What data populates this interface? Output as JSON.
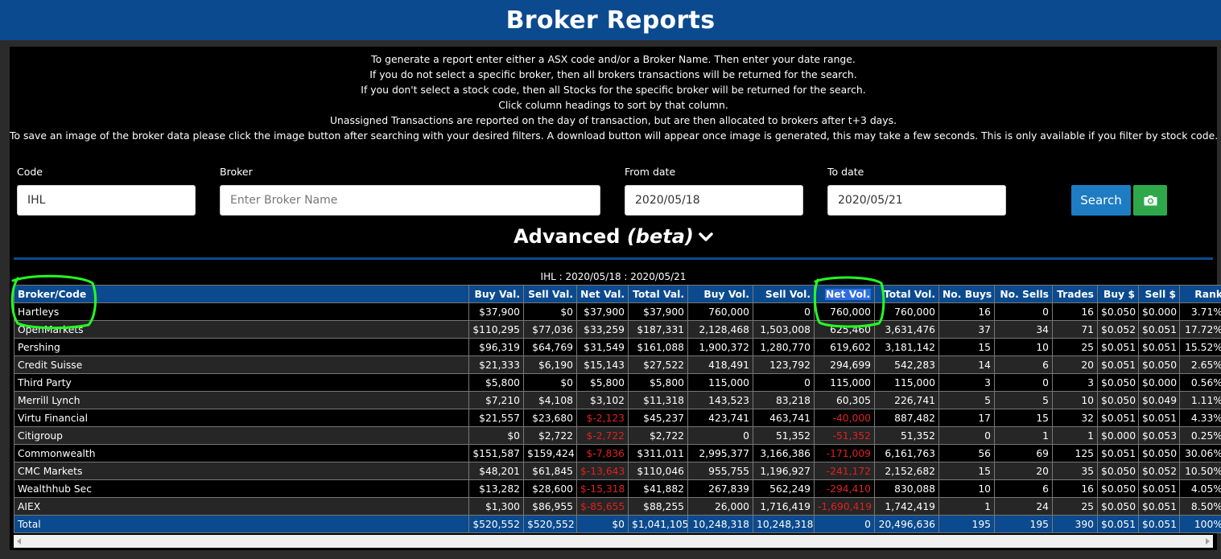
{
  "page": {
    "title": "Broker Reports"
  },
  "instructions": [
    "To generate a report enter either a ASX code and/or a Broker Name. Then enter your date range.",
    "If you do not select a specific broker, then all brokers transactions will be returned for the search.",
    "If you don't select a stock code, then all Stocks for the specific broker will be returned for the search.",
    "Click column headings to sort by that column.",
    "Unassigned Transactions are reported on the day of transaction, but are then allocated to brokers after t+3 days.",
    "To save an image of the broker data please click the image button after searching with your desired filters. A download button will appear once image is generated, this may take a few seconds. This is only available if you filter by stock code."
  ],
  "form": {
    "code_label": "Code",
    "code_value": "IHL",
    "broker_label": "Broker",
    "broker_placeholder": "Enter Broker Name",
    "from_label": "From date",
    "from_value": "2020/05/18",
    "to_label": "To date",
    "to_value": "2020/05/21",
    "search_label": "Search",
    "camera_icon": "camera-icon"
  },
  "advanced": {
    "label": "Advanced",
    "beta": "(beta)",
    "icon": "chevron-down-icon"
  },
  "report": {
    "caption": "IHL : 2020/05/18 : 2020/05/21",
    "columns": [
      "Broker/Code",
      "Buy Val.",
      "Sell Val.",
      "Net Val.",
      "Total Val.",
      "Buy Vol.",
      "Sell Vol.",
      "Net Vol.",
      "Total Vol.",
      "No. Buys",
      "No. Sells",
      "Trades",
      "Buy $",
      "Sell $",
      "Rank"
    ],
    "rows": [
      [
        "Hartleys",
        "$37,900",
        "$0",
        "$37,900",
        "$37,900",
        "760,000",
        "0",
        "760,000",
        "760,000",
        "16",
        "0",
        "16",
        "$0.050",
        "$0.000",
        "3.71%"
      ],
      [
        "OpenMarkets",
        "$110,295",
        "$77,036",
        "$33,259",
        "$187,331",
        "2,128,468",
        "1,503,008",
        "625,460",
        "3,631,476",
        "37",
        "34",
        "71",
        "$0.052",
        "$0.051",
        "17.72%"
      ],
      [
        "Pershing",
        "$96,319",
        "$64,769",
        "$31,549",
        "$161,088",
        "1,900,372",
        "1,280,770",
        "619,602",
        "3,181,142",
        "15",
        "10",
        "25",
        "$0.051",
        "$0.051",
        "15.52%"
      ],
      [
        "Credit Suisse",
        "$21,333",
        "$6,190",
        "$15,143",
        "$27,522",
        "418,491",
        "123,792",
        "294,699",
        "542,283",
        "14",
        "6",
        "20",
        "$0.051",
        "$0.050",
        "2.65%"
      ],
      [
        "Third Party",
        "$5,800",
        "$0",
        "$5,800",
        "$5,800",
        "115,000",
        "0",
        "115,000",
        "115,000",
        "3",
        "0",
        "3",
        "$0.050",
        "$0.000",
        "0.56%"
      ],
      [
        "Merrill Lynch",
        "$7,210",
        "$4,108",
        "$3,102",
        "$11,318",
        "143,523",
        "83,218",
        "60,305",
        "226,741",
        "5",
        "5",
        "10",
        "$0.050",
        "$0.049",
        "1.11%"
      ],
      [
        "Virtu Financial",
        "$21,557",
        "$23,680",
        "$-2,123",
        "$45,237",
        "423,741",
        "463,741",
        "-40,000",
        "887,482",
        "17",
        "15",
        "32",
        "$0.051",
        "$0.051",
        "4.33%"
      ],
      [
        "Citigroup",
        "$0",
        "$2,722",
        "$-2,722",
        "$2,722",
        "0",
        "51,352",
        "-51,352",
        "51,352",
        "0",
        "1",
        "1",
        "$0.000",
        "$0.053",
        "0.25%"
      ],
      [
        "Commonwealth",
        "$151,587",
        "$159,424",
        "$-7,836",
        "$311,011",
        "2,995,377",
        "3,166,386",
        "-171,009",
        "6,161,763",
        "56",
        "69",
        "125",
        "$0.051",
        "$0.050",
        "30.06%"
      ],
      [
        "CMC Markets",
        "$48,201",
        "$61,845",
        "$-13,643",
        "$110,046",
        "955,755",
        "1,196,927",
        "-241,172",
        "2,152,682",
        "15",
        "20",
        "35",
        "$0.050",
        "$0.052",
        "10.50%"
      ],
      [
        "Wealthhub Sec",
        "$13,282",
        "$28,600",
        "$-15,318",
        "$41,882",
        "267,839",
        "562,249",
        "-294,410",
        "830,088",
        "10",
        "6",
        "16",
        "$0.050",
        "$0.051",
        "4.05%"
      ],
      [
        "AIEX",
        "$1,300",
        "$86,955",
        "$-85,655",
        "$88,255",
        "26,000",
        "1,716,419",
        "-1,690,419",
        "1,742,419",
        "1",
        "24",
        "25",
        "$0.050",
        "$0.051",
        "8.50%"
      ]
    ],
    "total": [
      "Total",
      "$520,552",
      "$520,552",
      "$0",
      "$1,041,105",
      "10,248,318",
      "10,248,318",
      "0",
      "20,496,636",
      "195",
      "195",
      "390",
      "$0.051",
      "$0.051",
      "100%"
    ]
  },
  "colors": {
    "header_blue": "#0b4a8e",
    "negative_red": "#e02020",
    "annotation_green": "#22ff22"
  }
}
